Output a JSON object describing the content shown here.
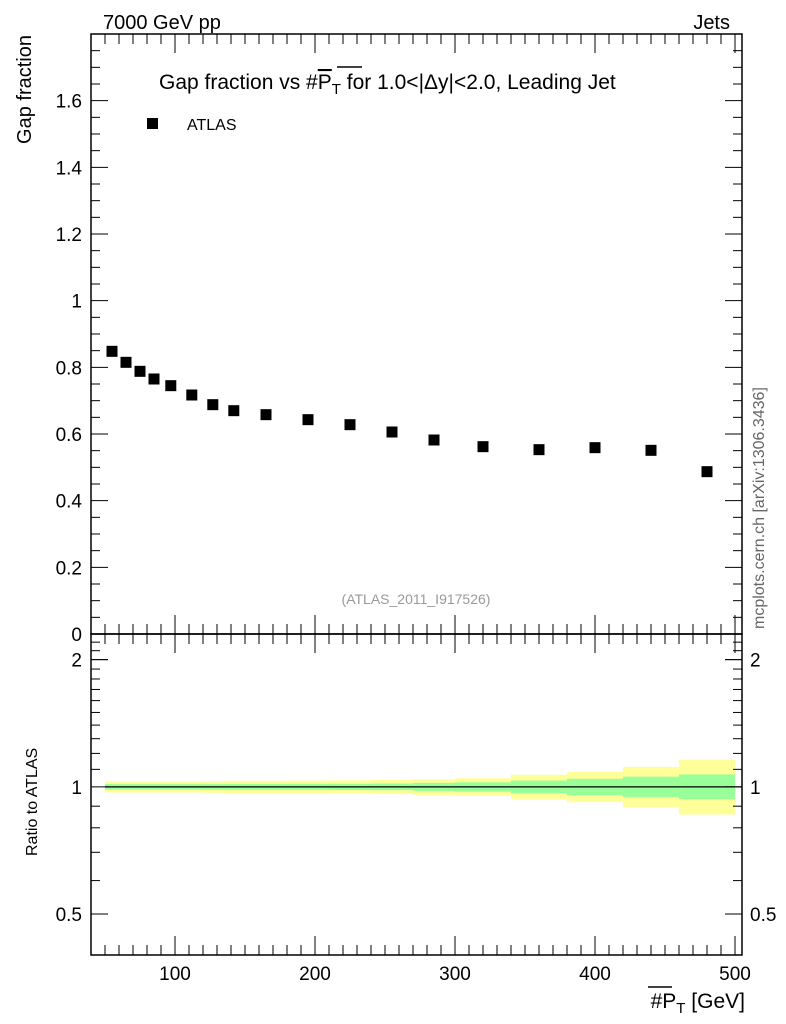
{
  "header": {
    "energy_label": "7000 GeV pp",
    "category_label": "Jets"
  },
  "side_label": "mcplots.cern.ch [arXiv:1306.3436]",
  "chart_data": [
    {
      "type": "scatter",
      "title_main": "Gap fraction vs #",
      "title_symbol": "P",
      "title_subscript": "T",
      "title_rest": " for 1.0<|Δy|<2.0, Leading Jet",
      "ylabel": "Gap fraction",
      "xlim": [
        40,
        505
      ],
      "ylim": [
        0,
        1.8
      ],
      "yticks": [
        0,
        0.2,
        0.4,
        0.6,
        0.8,
        1,
        1.2,
        1.4,
        1.6
      ],
      "ytick_labels": [
        "0",
        "0.2",
        "0.4",
        "0.6",
        "0.8",
        "1",
        "1.2",
        "1.4",
        "1.6"
      ],
      "legend": {
        "placement": "top-left",
        "entries": [
          "ATLAS"
        ]
      },
      "watermark": "(ATLAS_2011_I917526)",
      "series": [
        {
          "name": "ATLAS",
          "color": "#000000",
          "x": [
            55,
            65,
            75,
            85,
            97,
            112,
            127,
            142,
            165,
            195,
            225,
            255,
            285,
            320,
            360,
            400,
            440,
            480
          ],
          "y": [
            0.848,
            0.815,
            0.788,
            0.765,
            0.745,
            0.717,
            0.688,
            0.67,
            0.658,
            0.643,
            0.628,
            0.606,
            0.582,
            0.562,
            0.553,
            0.559,
            0.551,
            0.487
          ]
        }
      ]
    },
    {
      "type": "area",
      "ylabel": "Ratio to ATLAS",
      "xlabel_prefix": "#",
      "xlabel_symbol": "P",
      "xlabel_subscript": "T",
      "xlabel_unit": " [GeV]",
      "xlim": [
        40,
        505
      ],
      "ylim": [
        0.4,
        2.3
      ],
      "yscale": "log",
      "xticks": [
        100,
        200,
        300,
        400,
        500
      ],
      "xtick_labels": [
        "100",
        "200",
        "300",
        "400",
        "500"
      ],
      "yticks": [
        0.5,
        1,
        2
      ],
      "ytick_labels": [
        "0.5",
        "1",
        "2"
      ],
      "reference_line": 1,
      "band_colors": {
        "inner": "#99ff99",
        "outer": "#ffff99"
      },
      "bins": [
        {
          "x0": 50,
          "x1": 60,
          "inner": [
            0.985,
            1.015
          ],
          "outer": [
            0.97,
            1.03
          ]
        },
        {
          "x0": 60,
          "x1": 70,
          "inner": [
            0.985,
            1.015
          ],
          "outer": [
            0.97,
            1.03
          ]
        },
        {
          "x0": 70,
          "x1": 80,
          "inner": [
            0.985,
            1.015
          ],
          "outer": [
            0.97,
            1.03
          ]
        },
        {
          "x0": 80,
          "x1": 90,
          "inner": [
            0.985,
            1.015
          ],
          "outer": [
            0.97,
            1.03
          ]
        },
        {
          "x0": 90,
          "x1": 105,
          "inner": [
            0.985,
            1.015
          ],
          "outer": [
            0.97,
            1.03
          ]
        },
        {
          "x0": 105,
          "x1": 120,
          "inner": [
            0.985,
            1.015
          ],
          "outer": [
            0.97,
            1.03
          ]
        },
        {
          "x0": 120,
          "x1": 135,
          "inner": [
            0.985,
            1.015
          ],
          "outer": [
            0.968,
            1.032
          ]
        },
        {
          "x0": 135,
          "x1": 150,
          "inner": [
            0.984,
            1.016
          ],
          "outer": [
            0.966,
            1.034
          ]
        },
        {
          "x0": 150,
          "x1": 180,
          "inner": [
            0.984,
            1.016
          ],
          "outer": [
            0.966,
            1.034
          ]
        },
        {
          "x0": 180,
          "x1": 210,
          "inner": [
            0.984,
            1.016
          ],
          "outer": [
            0.965,
            1.035
          ]
        },
        {
          "x0": 210,
          "x1": 240,
          "inner": [
            0.983,
            1.017
          ],
          "outer": [
            0.964,
            1.036
          ]
        },
        {
          "x0": 240,
          "x1": 270,
          "inner": [
            0.982,
            1.018
          ],
          "outer": [
            0.962,
            1.038
          ]
        },
        {
          "x0": 270,
          "x1": 300,
          "inner": [
            0.978,
            1.022
          ],
          "outer": [
            0.957,
            1.043
          ]
        },
        {
          "x0": 300,
          "x1": 340,
          "inner": [
            0.975,
            1.025
          ],
          "outer": [
            0.952,
            1.048
          ]
        },
        {
          "x0": 340,
          "x1": 380,
          "inner": [
            0.965,
            1.035
          ],
          "outer": [
            0.935,
            1.068
          ]
        },
        {
          "x0": 380,
          "x1": 420,
          "inner": [
            0.955,
            1.045
          ],
          "outer": [
            0.92,
            1.085
          ]
        },
        {
          "x0": 420,
          "x1": 460,
          "inner": [
            0.945,
            1.057
          ],
          "outer": [
            0.895,
            1.115
          ]
        },
        {
          "x0": 460,
          "x1": 500,
          "inner": [
            0.935,
            1.07
          ],
          "outer": [
            0.86,
            1.16
          ]
        }
      ]
    }
  ]
}
